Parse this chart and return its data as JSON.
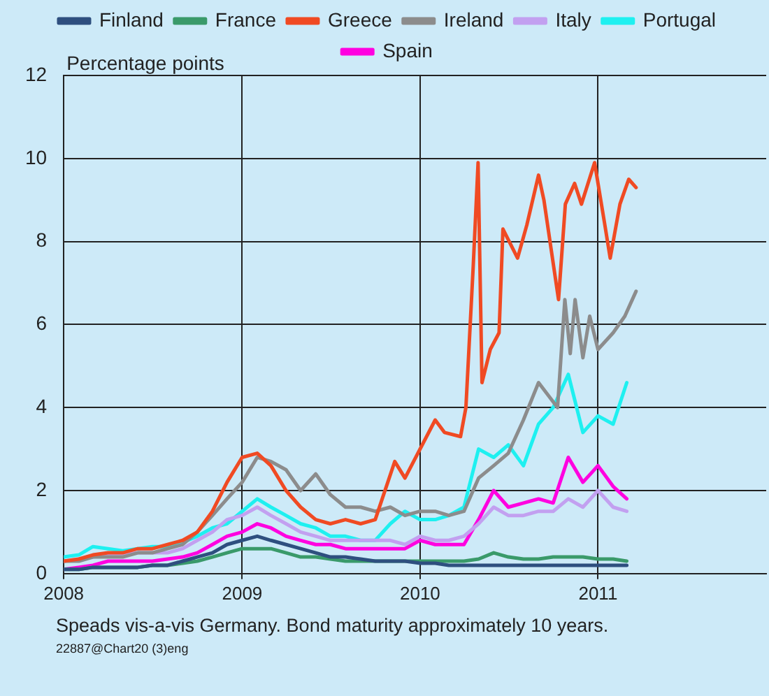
{
  "chart_data": {
    "type": "line",
    "ylabel": "Percentage points",
    "annotations": [
      "Speads vis-a-vis Germany. Bond maturity approximately 10 years.",
      "22887@Chart20 (3)eng"
    ],
    "x": [
      "2008-01",
      "2008-02",
      "2008-03",
      "2008-04",
      "2008-05",
      "2008-06",
      "2008-07",
      "2008-08",
      "2008-09",
      "2008-10",
      "2008-11",
      "2008-12",
      "2009-01",
      "2009-02",
      "2009-03",
      "2009-04",
      "2009-05",
      "2009-06",
      "2009-07",
      "2009-08",
      "2009-09",
      "2009-10",
      "2009-11",
      "2009-12",
      "2010-01",
      "2010-02",
      "2010-03",
      "2010-04",
      "2010-05",
      "2010-06",
      "2010-07",
      "2010-08",
      "2010-09",
      "2010-10",
      "2010-11",
      "2010-12",
      "2011-01",
      "2011-02",
      "2011-03"
    ],
    "xlim": [
      "2008-01-01",
      "2011-12-12"
    ],
    "xticks": [
      "2008",
      "2009",
      "2010",
      "2011"
    ],
    "ylim": [
      0,
      12
    ],
    "yticks": [
      0,
      2,
      4,
      6,
      8,
      10,
      12
    ],
    "grid": true,
    "legend": "top",
    "marker": "none",
    "line_style": "solid",
    "series": [
      {
        "name": "Finland",
        "color": "#2e4f7f",
        "values": [
          0.1,
          0.1,
          0.15,
          0.15,
          0.15,
          0.15,
          0.2,
          0.2,
          0.3,
          0.4,
          0.5,
          0.7,
          0.8,
          0.9,
          0.8,
          0.7,
          0.6,
          0.5,
          0.4,
          0.4,
          0.35,
          0.3,
          0.3,
          0.3,
          0.25,
          0.25,
          0.2,
          0.2,
          0.2,
          0.2,
          0.2,
          0.2,
          0.2,
          0.2,
          0.2,
          0.2,
          0.2,
          0.2,
          0.2
        ]
      },
      {
        "name": "France",
        "color": "#3a9a6a",
        "values": [
          0.1,
          0.1,
          0.15,
          0.15,
          0.15,
          0.15,
          0.2,
          0.2,
          0.25,
          0.3,
          0.4,
          0.5,
          0.6,
          0.6,
          0.6,
          0.5,
          0.4,
          0.4,
          0.35,
          0.3,
          0.3,
          0.3,
          0.3,
          0.3,
          0.3,
          0.3,
          0.3,
          0.3,
          0.35,
          0.5,
          0.4,
          0.35,
          0.35,
          0.4,
          0.4,
          0.4,
          0.35,
          0.35,
          0.3
        ]
      },
      {
        "name": "Greece",
        "color": "#f04a23",
        "x": [
          "2008-01",
          "2008-02",
          "2008-03",
          "2008-04",
          "2008-05",
          "2008-06",
          "2008-07",
          "2008-08",
          "2008-09",
          "2008-10",
          "2008-11",
          "2008-12",
          "2009-01",
          "2009-02",
          "2009-03",
          "2009-04",
          "2009-05",
          "2009-06",
          "2009-07",
          "2009-08",
          "2009-09",
          "2009-10",
          "2009-11-10",
          "2009-12-01",
          "2010-02-01",
          "2010-02-20",
          "2010-03-25",
          "2010-04-05",
          "2010-04-20",
          "2010-04-30",
          "2010-05-08",
          "2010-05-25",
          "2010-06-12",
          "2010-06-20",
          "2010-07-20",
          "2010-08-08",
          "2010-09-01",
          "2010-09-12",
          "2010-10-12",
          "2010-10-26",
          "2010-11-14",
          "2010-11-28",
          "2010-12-25",
          "2011-01-15",
          "2011-01-26",
          "2011-02-15",
          "2011-03-05",
          "2011-03-20"
        ],
        "values": [
          0.3,
          0.35,
          0.45,
          0.5,
          0.5,
          0.6,
          0.6,
          0.7,
          0.8,
          1.0,
          1.5,
          2.2,
          2.8,
          2.9,
          2.6,
          2.0,
          1.6,
          1.3,
          1.2,
          1.3,
          1.2,
          1.3,
          2.7,
          2.3,
          3.7,
          3.4,
          3.3,
          4.0,
          7.4,
          9.9,
          4.6,
          5.4,
          5.8,
          8.3,
          7.6,
          8.4,
          9.6,
          9.0,
          6.6,
          8.9,
          9.4,
          8.9,
          9.9,
          8.4,
          7.6,
          8.9,
          9.5,
          9.3
        ]
      },
      {
        "name": "Ireland",
        "color": "#8c8c8c",
        "x": [
          "2008-01",
          "2008-02",
          "2008-03",
          "2008-04",
          "2008-05",
          "2008-06",
          "2008-07",
          "2008-08",
          "2008-09",
          "2008-10",
          "2008-11",
          "2008-12",
          "2009-01",
          "2009-02",
          "2009-03",
          "2009-04",
          "2009-05",
          "2009-06",
          "2009-07",
          "2009-08",
          "2009-09",
          "2009-10",
          "2009-11",
          "2009-12",
          "2010-01",
          "2010-02",
          "2010-03",
          "2010-04",
          "2010-05",
          "2010-06",
          "2010-07",
          "2010-08",
          "2010-09",
          "2010-10-10",
          "2010-10-25",
          "2010-11-05",
          "2010-11-15",
          "2010-12-01",
          "2010-12-15",
          "2011-01-01",
          "2011-02-01",
          "2011-02-25",
          "2011-03-20"
        ],
        "values": [
          0.3,
          0.3,
          0.4,
          0.4,
          0.4,
          0.5,
          0.5,
          0.6,
          0.7,
          1.0,
          1.4,
          1.8,
          2.2,
          2.8,
          2.7,
          2.5,
          2.0,
          2.4,
          1.9,
          1.6,
          1.6,
          1.5,
          1.6,
          1.4,
          1.5,
          1.5,
          1.4,
          1.5,
          2.3,
          2.6,
          2.9,
          3.7,
          4.6,
          4.0,
          6.6,
          5.3,
          6.6,
          5.2,
          6.2,
          5.4,
          5.8,
          6.2,
          6.8
        ]
      },
      {
        "name": "Italy",
        "color": "#c2a0f0",
        "values": [
          0.3,
          0.35,
          0.4,
          0.45,
          0.45,
          0.5,
          0.5,
          0.5,
          0.6,
          0.8,
          1.0,
          1.3,
          1.4,
          1.6,
          1.4,
          1.2,
          1.0,
          0.9,
          0.8,
          0.8,
          0.8,
          0.8,
          0.8,
          0.7,
          0.9,
          0.8,
          0.8,
          0.9,
          1.2,
          1.6,
          1.4,
          1.4,
          1.5,
          1.5,
          1.8,
          1.6,
          2.0,
          1.6,
          1.5
        ]
      },
      {
        "name": "Portugal",
        "color": "#1ef0f0",
        "values": [
          0.4,
          0.45,
          0.65,
          0.6,
          0.55,
          0.6,
          0.65,
          0.65,
          0.75,
          0.9,
          1.1,
          1.2,
          1.5,
          1.8,
          1.6,
          1.4,
          1.2,
          1.1,
          0.9,
          0.9,
          0.8,
          0.8,
          1.2,
          1.5,
          1.3,
          1.3,
          1.4,
          1.6,
          3.0,
          2.8,
          3.1,
          2.6,
          3.6,
          4.0,
          4.8,
          3.4,
          3.8,
          3.6,
          4.6
        ]
      },
      {
        "name": "Spain",
        "color": "#ff00e0",
        "values": [
          0.1,
          0.15,
          0.2,
          0.3,
          0.3,
          0.3,
          0.3,
          0.35,
          0.4,
          0.5,
          0.7,
          0.9,
          1.0,
          1.2,
          1.1,
          0.9,
          0.8,
          0.7,
          0.7,
          0.6,
          0.6,
          0.6,
          0.6,
          0.6,
          0.8,
          0.7,
          0.7,
          0.7,
          1.3,
          2.0,
          1.6,
          1.7,
          1.8,
          1.7,
          2.8,
          2.2,
          2.6,
          2.1,
          1.8
        ]
      }
    ]
  }
}
